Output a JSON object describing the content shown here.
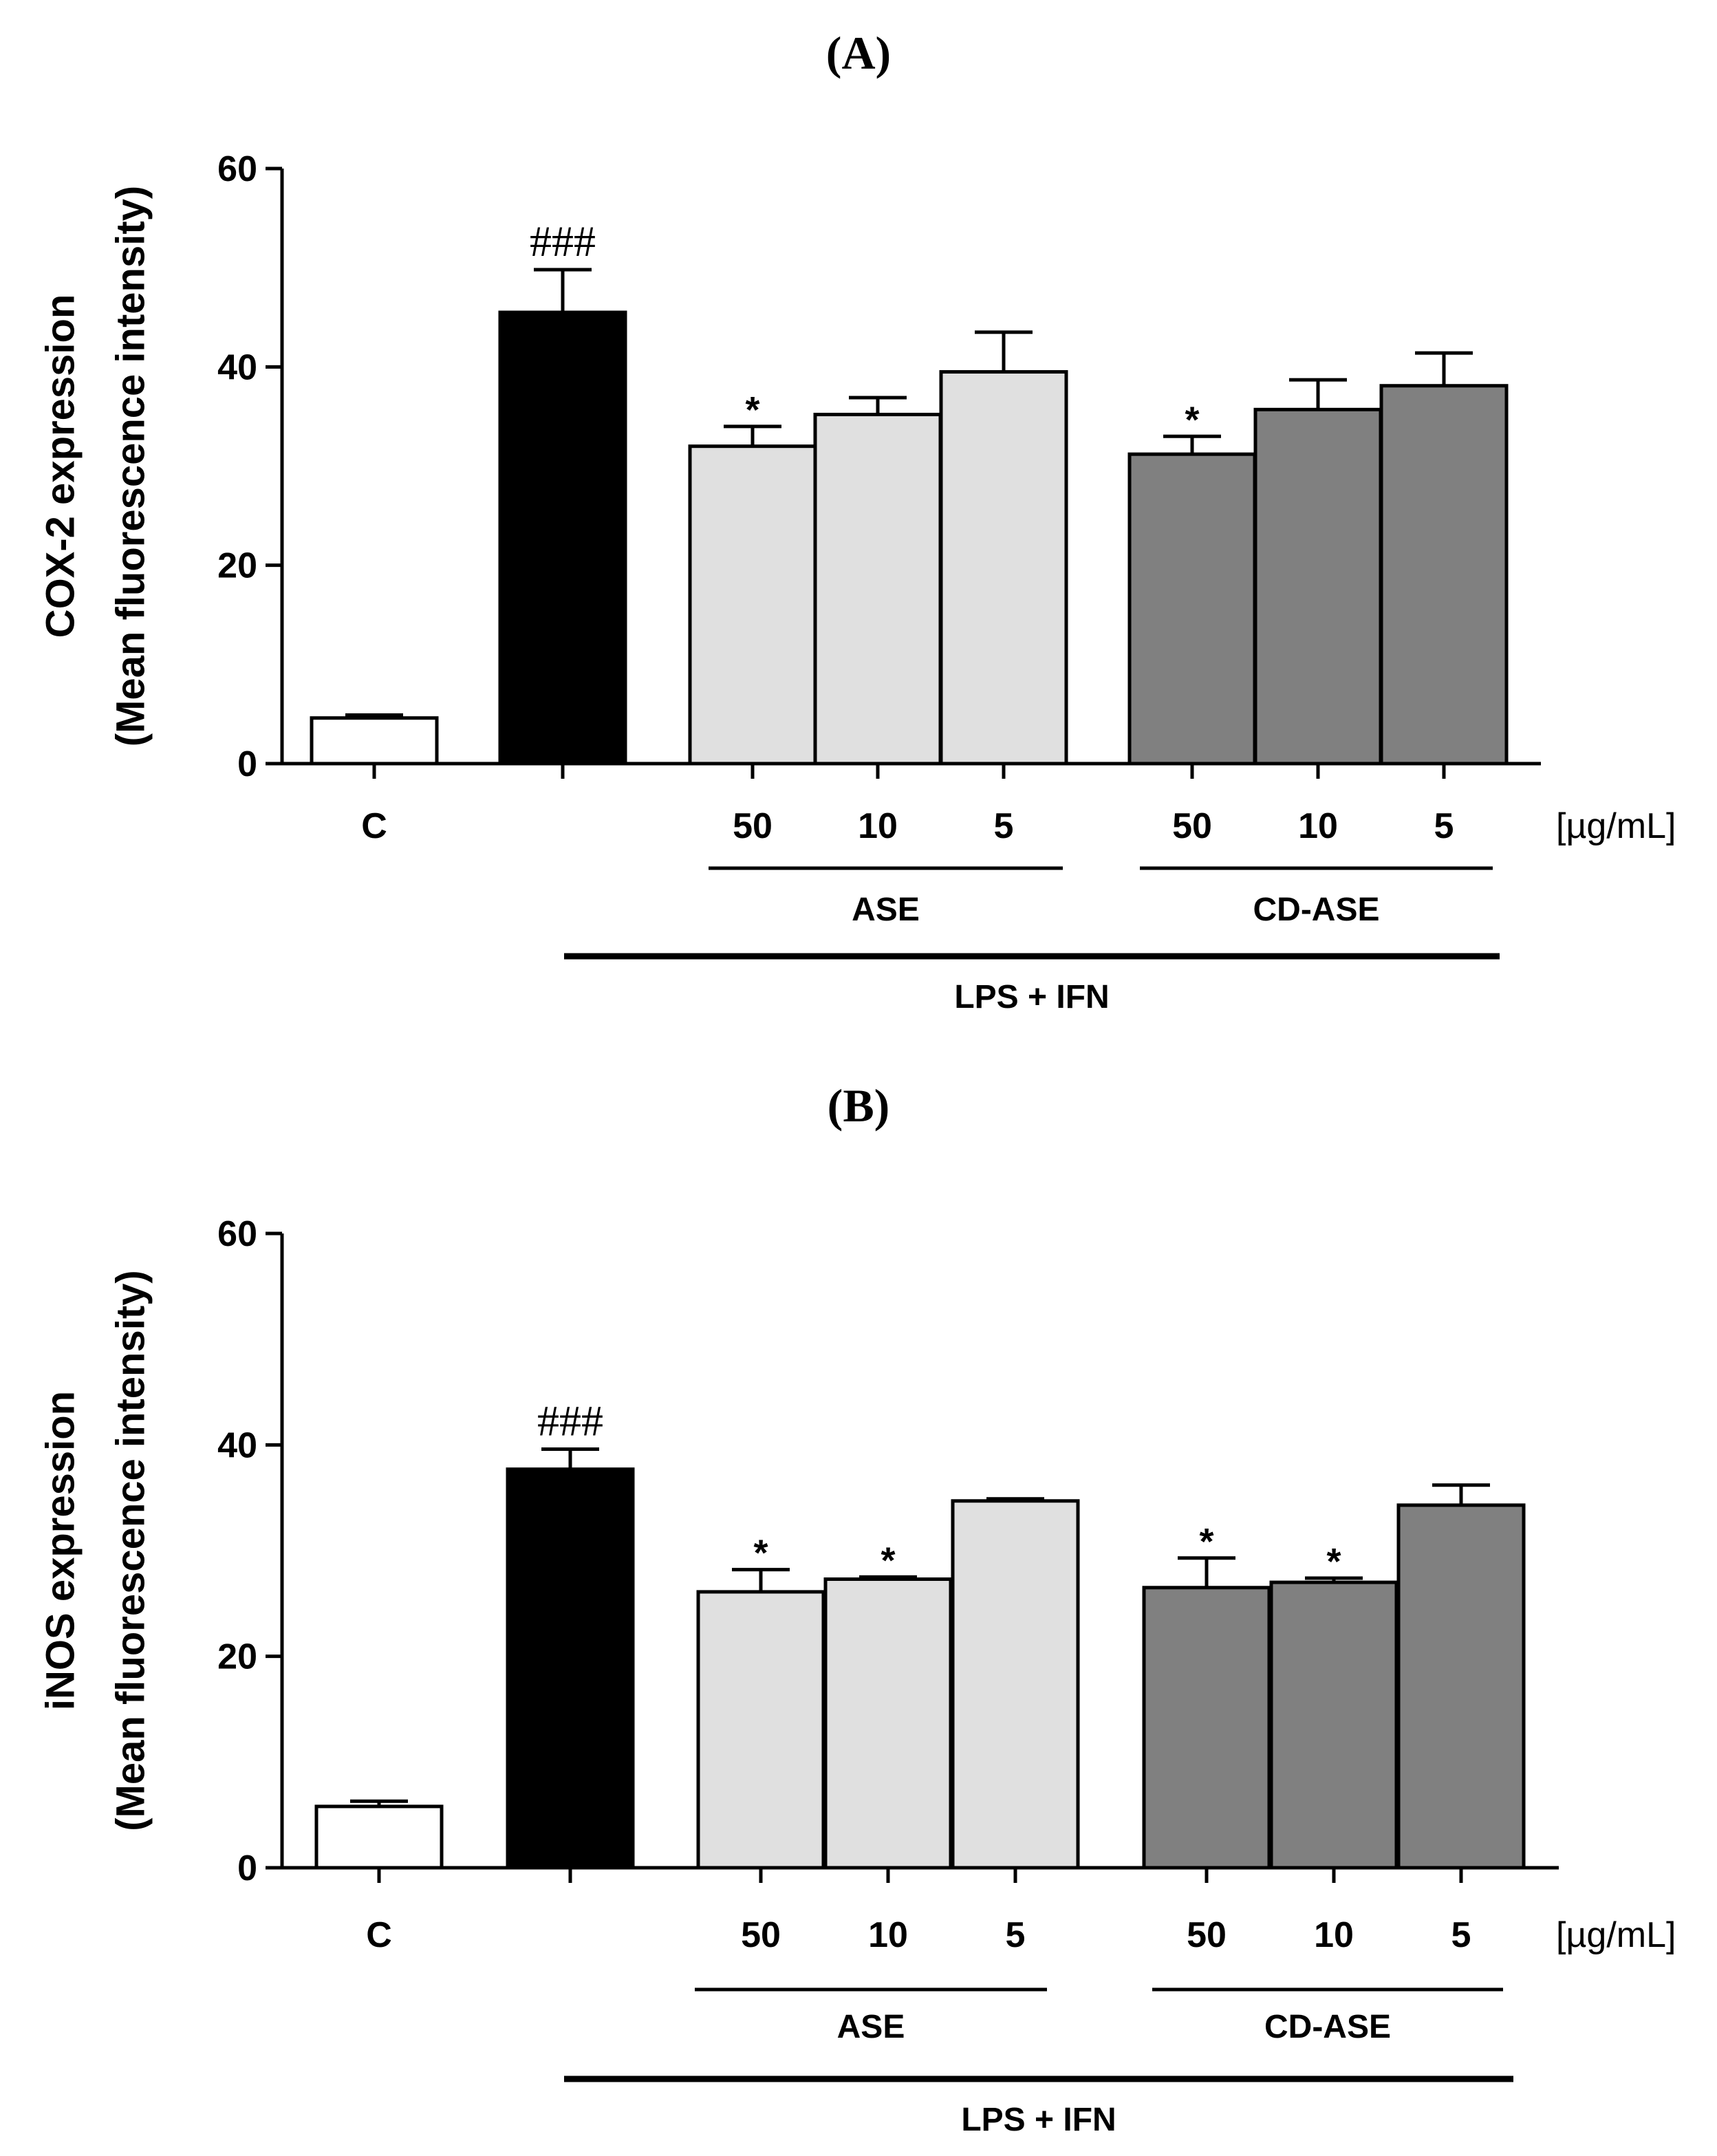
{
  "colors": {
    "control": "#ffffff",
    "lps": "#000000",
    "ase": "#e0e0e0",
    "cdase": "#808080",
    "axis": "#000000"
  },
  "chart_data": [
    {
      "type": "bar",
      "panel_label": "(A)",
      "ylabel_line1": "COX-2 expression",
      "ylabel_line2": "(Mean fluorescence intensity)",
      "ylim": [
        0,
        60
      ],
      "yticks": [
        "0",
        "20",
        "40",
        "60"
      ],
      "ytick_values": [
        0,
        20,
        40,
        60
      ],
      "unit": "[µg/mL]",
      "bars": [
        {
          "label": "C",
          "value": 4.6,
          "error": 0.3,
          "group": "control",
          "annotation": ""
        },
        {
          "label": "",
          "value": 45.5,
          "error": 4.3,
          "group": "lps",
          "annotation": "###"
        },
        {
          "label": "50",
          "value": 32.0,
          "error": 2.0,
          "group": "ase",
          "annotation": "*"
        },
        {
          "label": "10",
          "value": 35.2,
          "error": 1.7,
          "group": "ase",
          "annotation": ""
        },
        {
          "label": "5",
          "value": 39.5,
          "error": 4.0,
          "group": "ase",
          "annotation": ""
        },
        {
          "label": "50",
          "value": 31.2,
          "error": 1.8,
          "group": "cdase",
          "annotation": "*"
        },
        {
          "label": "10",
          "value": 35.7,
          "error": 3.0,
          "group": "cdase",
          "annotation": ""
        },
        {
          "label": "5",
          "value": 38.1,
          "error": 3.3,
          "group": "cdase",
          "annotation": ""
        }
      ],
      "group_labels": {
        "ase": "ASE",
        "cdase": "CD-ASE",
        "treatment": "LPS + IFN"
      }
    },
    {
      "type": "bar",
      "panel_label": "(B)",
      "ylabel_line1": "iNOS expression",
      "ylabel_line2": "(Mean fluorescence intensity)",
      "ylim": [
        0,
        60
      ],
      "yticks": [
        "0",
        "20",
        "40",
        "60"
      ],
      "ytick_values": [
        0,
        20,
        40,
        60
      ],
      "unit": "[µg/mL]",
      "bars": [
        {
          "label": "C",
          "value": 5.8,
          "error": 0.5,
          "group": "control",
          "annotation": ""
        },
        {
          "label": "",
          "value": 37.7,
          "error": 1.9,
          "group": "lps",
          "annotation": "###"
        },
        {
          "label": "50",
          "value": 26.1,
          "error": 2.1,
          "group": "ase",
          "annotation": "*"
        },
        {
          "label": "10",
          "value": 27.3,
          "error": 0.2,
          "group": "ase",
          "annotation": "*"
        },
        {
          "label": "5",
          "value": 34.7,
          "error": 0.2,
          "group": "ase",
          "annotation": ""
        },
        {
          "label": "50",
          "value": 26.5,
          "error": 2.8,
          "group": "cdase",
          "annotation": "*"
        },
        {
          "label": "10",
          "value": 27.0,
          "error": 0.4,
          "group": "cdase",
          "annotation": "*"
        },
        {
          "label": "5",
          "value": 34.3,
          "error": 1.9,
          "group": "cdase",
          "annotation": ""
        }
      ],
      "group_labels": {
        "ase": "ASE",
        "cdase": "CD-ASE",
        "treatment": "LPS + IFN"
      }
    }
  ]
}
